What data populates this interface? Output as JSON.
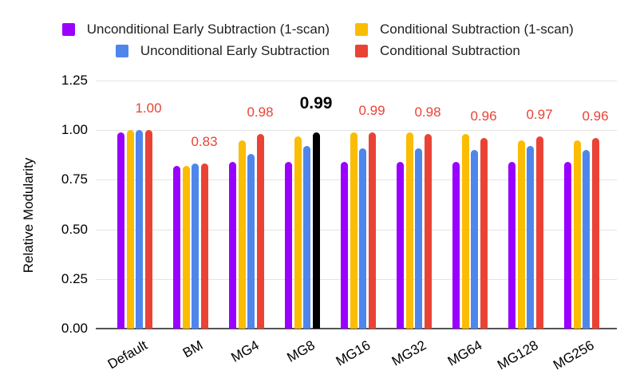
{
  "chart_data": {
    "type": "bar",
    "title": "",
    "xlabel": "",
    "ylabel": "Relative Modularity",
    "ylim": [
      0,
      1.25
    ],
    "ytick_step": 0.25,
    "yticks": [
      "0.00",
      "0.25",
      "0.50",
      "0.75",
      "1.00",
      "1.25"
    ],
    "grid": true,
    "legend_position": "top",
    "categories": [
      "Default",
      "BM",
      "MG4",
      "MG8",
      "MG16",
      "MG32",
      "MG64",
      "MG128",
      "MG256"
    ],
    "series": [
      {
        "name": "Unconditional Early Subtraction (1-scan)",
        "color": "#9900ff",
        "values": [
          0.99,
          0.82,
          0.84,
          0.84,
          0.84,
          0.84,
          0.84,
          0.84,
          0.84
        ]
      },
      {
        "name": "Conditional Subtraction (1-scan)",
        "color": "#fbbc04",
        "values": [
          1.0,
          0.82,
          0.95,
          0.97,
          0.99,
          0.99,
          0.98,
          0.95,
          0.95
        ]
      },
      {
        "name": "Unconditional Early Subtraction",
        "color": "#4e86ec",
        "values": [
          1.0,
          0.83,
          0.88,
          0.92,
          0.91,
          0.91,
          0.9,
          0.92,
          0.9
        ]
      },
      {
        "name": "Conditional Subtraction",
        "color": "#ea4335",
        "values": [
          1.0,
          0.83,
          0.98,
          0.99,
          0.99,
          0.98,
          0.96,
          0.97,
          0.96
        ]
      }
    ],
    "highlight": {
      "category": "MG8",
      "series": "Conditional Subtraction",
      "bar_color": "#000000"
    },
    "annotations": [
      {
        "category": "Default",
        "text": "1.00",
        "color": "#ea4335",
        "bold": false
      },
      {
        "category": "BM",
        "text": "0.83",
        "color": "#ea4335",
        "bold": false
      },
      {
        "category": "MG4",
        "text": "0.98",
        "color": "#ea4335",
        "bold": false
      },
      {
        "category": "MG8",
        "text": "0.99",
        "color": "#000000",
        "bold": true
      },
      {
        "category": "MG16",
        "text": "0.99",
        "color": "#ea4335",
        "bold": false
      },
      {
        "category": "MG32",
        "text": "0.98",
        "color": "#ea4335",
        "bold": false
      },
      {
        "category": "MG64",
        "text": "0.96",
        "color": "#ea4335",
        "bold": false
      },
      {
        "category": "MG128",
        "text": "0.97",
        "color": "#ea4335",
        "bold": false
      },
      {
        "category": "MG256",
        "text": "0.96",
        "color": "#ea4335",
        "bold": false
      }
    ],
    "colors": {
      "grid": "#e3e3e3",
      "axis": "#545454",
      "annotation_red": "#ea4335",
      "annotation_highlight": "#000000"
    }
  }
}
